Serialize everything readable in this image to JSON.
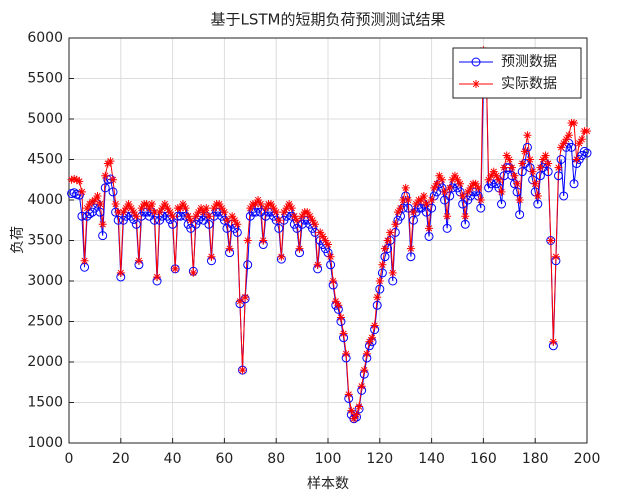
{
  "chart_data": {
    "type": "line",
    "title": "基于LSTM的短期负荷预测测试结果",
    "xlabel": "样本数",
    "ylabel": "负荷",
    "x": [
      1,
      2,
      3,
      4,
      5,
      6,
      7,
      8,
      9,
      10,
      11,
      12,
      13,
      14,
      15,
      16,
      17,
      18,
      19,
      20,
      21,
      22,
      23,
      24,
      25,
      26,
      27,
      28,
      29,
      30,
      31,
      32,
      33,
      34,
      35,
      36,
      37,
      38,
      39,
      40,
      41,
      42,
      43,
      44,
      45,
      46,
      47,
      48,
      49,
      50,
      51,
      52,
      53,
      54,
      55,
      56,
      57,
      58,
      59,
      60,
      61,
      62,
      63,
      64,
      65,
      66,
      67,
      68,
      69,
      70,
      71,
      72,
      73,
      74,
      75,
      76,
      77,
      78,
      79,
      80,
      81,
      82,
      83,
      84,
      85,
      86,
      87,
      88,
      89,
      90,
      91,
      92,
      93,
      94,
      95,
      96,
      97,
      98,
      99,
      100,
      101,
      102,
      103,
      104,
      105,
      106,
      107,
      108,
      109,
      110,
      111,
      112,
      113,
      114,
      115,
      116,
      117,
      118,
      119,
      120,
      121,
      122,
      123,
      124,
      125,
      126,
      127,
      128,
      129,
      130,
      131,
      132,
      133,
      134,
      135,
      136,
      137,
      138,
      139,
      140,
      141,
      142,
      143,
      144,
      145,
      146,
      147,
      148,
      149,
      150,
      151,
      152,
      153,
      154,
      155,
      156,
      157,
      158,
      159,
      160,
      161,
      162,
      163,
      164,
      165,
      166,
      167,
      168,
      169,
      170,
      171,
      172,
      173,
      174,
      175,
      176,
      177,
      178,
      179,
      180,
      181,
      182,
      183,
      184,
      185,
      186,
      187,
      188,
      189,
      190,
      191,
      192,
      193,
      194,
      195,
      196,
      197,
      198,
      199,
      200
    ],
    "series": [
      {
        "name": "预测数据",
        "color": "#0000ff",
        "marker": "o",
        "values": [
          4080,
          4090,
          4070,
          4060,
          3800,
          3170,
          3800,
          3830,
          3850,
          3900,
          3950,
          3850,
          3560,
          4150,
          4250,
          4260,
          4100,
          3850,
          3750,
          3050,
          3750,
          3800,
          3850,
          3800,
          3760,
          3700,
          3200,
          3800,
          3850,
          3850,
          3800,
          3850,
          3750,
          3000,
          3750,
          3800,
          3850,
          3800,
          3760,
          3700,
          3150,
          3800,
          3800,
          3850,
          3800,
          3700,
          3650,
          3120,
          3700,
          3750,
          3800,
          3750,
          3800,
          3700,
          3250,
          3800,
          3850,
          3850,
          3800,
          3750,
          3650,
          3350,
          3700,
          3650,
          3600,
          2720,
          1900,
          2780,
          3200,
          3800,
          3850,
          3850,
          3900,
          3850,
          3450,
          3800,
          3850,
          3850,
          3800,
          3750,
          3650,
          3270,
          3750,
          3800,
          3850,
          3800,
          3700,
          3650,
          3350,
          3700,
          3750,
          3750,
          3700,
          3650,
          3600,
          3150,
          3500,
          3450,
          3400,
          3350,
          3200,
          2950,
          2700,
          2650,
          2500,
          2300,
          2050,
          1550,
          1350,
          1300,
          1320,
          1420,
          1650,
          1850,
          2050,
          2200,
          2250,
          2400,
          2700,
          2900,
          3100,
          3300,
          3400,
          3500,
          3000,
          3600,
          3750,
          3800,
          3900,
          4050,
          3900,
          3300,
          3750,
          3850,
          3900,
          3900,
          3950,
          3850,
          3550,
          3900,
          4050,
          4100,
          4200,
          4150,
          4000,
          3650,
          4050,
          4150,
          4200,
          4150,
          4100,
          3950,
          3700,
          4000,
          4050,
          4100,
          4100,
          4050,
          3900,
          5400,
          5800,
          4150,
          4200,
          4250,
          4200,
          4150,
          3950,
          4300,
          4400,
          4400,
          4300,
          4200,
          4100,
          3820,
          4350,
          4450,
          4650,
          4400,
          4250,
          4100,
          3950,
          4300,
          4400,
          4450,
          4350,
          3500,
          2200,
          3250,
          4300,
          4500,
          4050,
          4650,
          4700,
          4650,
          4200,
          4450,
          4500,
          4550,
          4600,
          4580
        ]
      },
      {
        "name": "实际数据",
        "color": "#ff0000",
        "marker": "*",
        "values": [
          4250,
          4260,
          4250,
          4230,
          4100,
          3250,
          3900,
          3950,
          3980,
          4000,
          4050,
          3950,
          3700,
          4300,
          4450,
          4480,
          4250,
          3950,
          3850,
          3100,
          3850,
          3900,
          3950,
          3900,
          3850,
          3800,
          3250,
          3900,
          3950,
          3950,
          3900,
          3950,
          3850,
          3050,
          3850,
          3900,
          3950,
          3900,
          3850,
          3800,
          3150,
          3900,
          3900,
          3950,
          3900,
          3800,
          3750,
          3100,
          3800,
          3850,
          3900,
          3850,
          3900,
          3800,
          3300,
          3900,
          3950,
          3950,
          3900,
          3850,
          3750,
          3400,
          3800,
          3750,
          3700,
          2750,
          1900,
          2800,
          3500,
          3900,
          3950,
          3950,
          4000,
          3950,
          3500,
          3900,
          3950,
          3950,
          3900,
          3850,
          3750,
          3300,
          3850,
          3900,
          3950,
          3900,
          3800,
          3750,
          3400,
          3800,
          3850,
          3850,
          3800,
          3750,
          3700,
          3200,
          3600,
          3550,
          3500,
          3450,
          3300,
          3000,
          2750,
          2700,
          2550,
          2350,
          2100,
          1600,
          1400,
          1300,
          1350,
          1450,
          1700,
          1900,
          2100,
          2250,
          2300,
          2450,
          2800,
          3000,
          3200,
          3400,
          3500,
          3600,
          3100,
          3700,
          3850,
          3900,
          4000,
          4150,
          4000,
          3400,
          3850,
          3950,
          4000,
          4000,
          4050,
          3950,
          3650,
          4000,
          4150,
          4200,
          4300,
          4250,
          4100,
          3800,
          4150,
          4250,
          4300,
          4250,
          4200,
          4050,
          3800,
          4100,
          4150,
          4200,
          4200,
          4150,
          4000,
          5850,
          5800,
          4250,
          4300,
          4350,
          4300,
          4250,
          4100,
          4400,
          4550,
          4500,
          4400,
          4300,
          4200,
          4000,
          4450,
          4600,
          4800,
          4500,
          4350,
          4200,
          4050,
          4400,
          4500,
          4550,
          4450,
          3500,
          2250,
          3300,
          4400,
          4650,
          4700,
          4750,
          4800,
          4950,
          4950,
          4500,
          4700,
          4750,
          4850,
          4850
        ]
      }
    ],
    "xlim": [
      0,
      200
    ],
    "xticks": [
      0,
      20,
      40,
      60,
      80,
      100,
      120,
      140,
      160,
      180,
      200
    ],
    "ylim": [
      1000,
      6000
    ],
    "yticks": [
      1000,
      1500,
      2000,
      2500,
      3000,
      3500,
      4000,
      4500,
      5000,
      5500,
      6000
    ],
    "grid": true,
    "legend": "northeast"
  }
}
